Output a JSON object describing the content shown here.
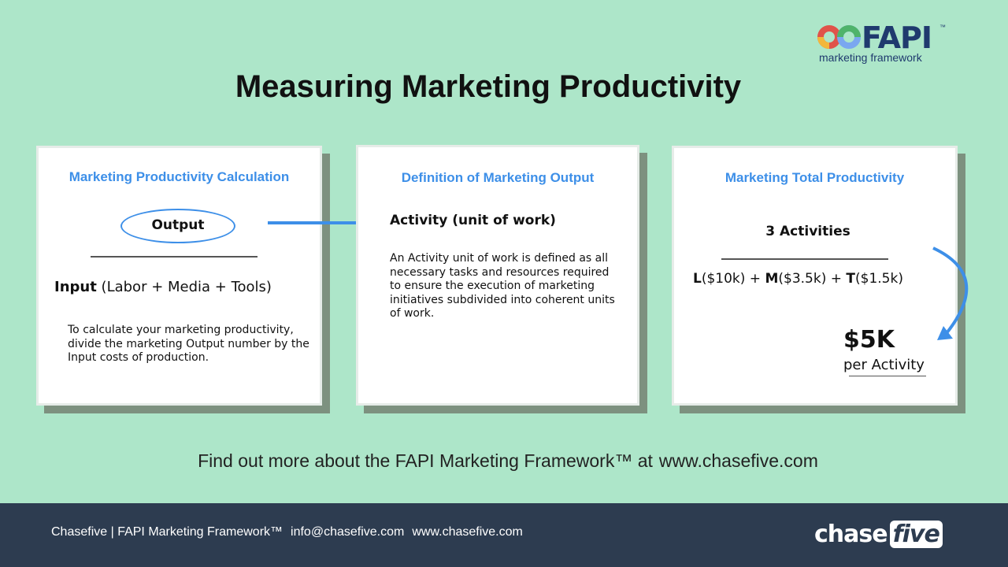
{
  "logo": {
    "brand": "FAPI",
    "tm": "™",
    "tagline": "marketing framework"
  },
  "title": "Measuring Marketing Productivity",
  "cards": [
    {
      "title": "Marketing Productivity Calculation",
      "numerator": "Output",
      "denominator_bold": "Input",
      "denominator_rest": " (Labor + Media + Tools)",
      "description": "To calculate your marketing productivity, divide the marketing Output number by the Input costs of production."
    },
    {
      "title": "Definition of Marketing Output",
      "heading": "Activity (unit of work)",
      "description": "An Activity unit of work is defined as all necessary tasks and resources required to ensure the execution of marketing initiatives subdivided into coherent units of work."
    },
    {
      "title": "Marketing Total Productivity",
      "numerator": "3 Activities",
      "formula": [
        {
          "b": "L",
          "v": "($10k) + "
        },
        {
          "b": "M",
          "v": "($3.5k) + "
        },
        {
          "b": "T",
          "v": "($1.5k)"
        }
      ],
      "result": "$5K",
      "result_unit": "per Activity"
    }
  ],
  "cta": {
    "text": "Find out more about the FAPI Marketing Framework™ at",
    "link": "www.chasefive.com"
  },
  "footer": {
    "text": "Chasefive | FAPI Marketing Framework™",
    "email": "info@chasefive.com",
    "website": "www.chasefive.com",
    "logo_a": "chase",
    "logo_b": "five"
  },
  "colors": {
    "background": "#ade6c9",
    "accent": "#3d8fe8",
    "footer": "#2d3c50"
  }
}
